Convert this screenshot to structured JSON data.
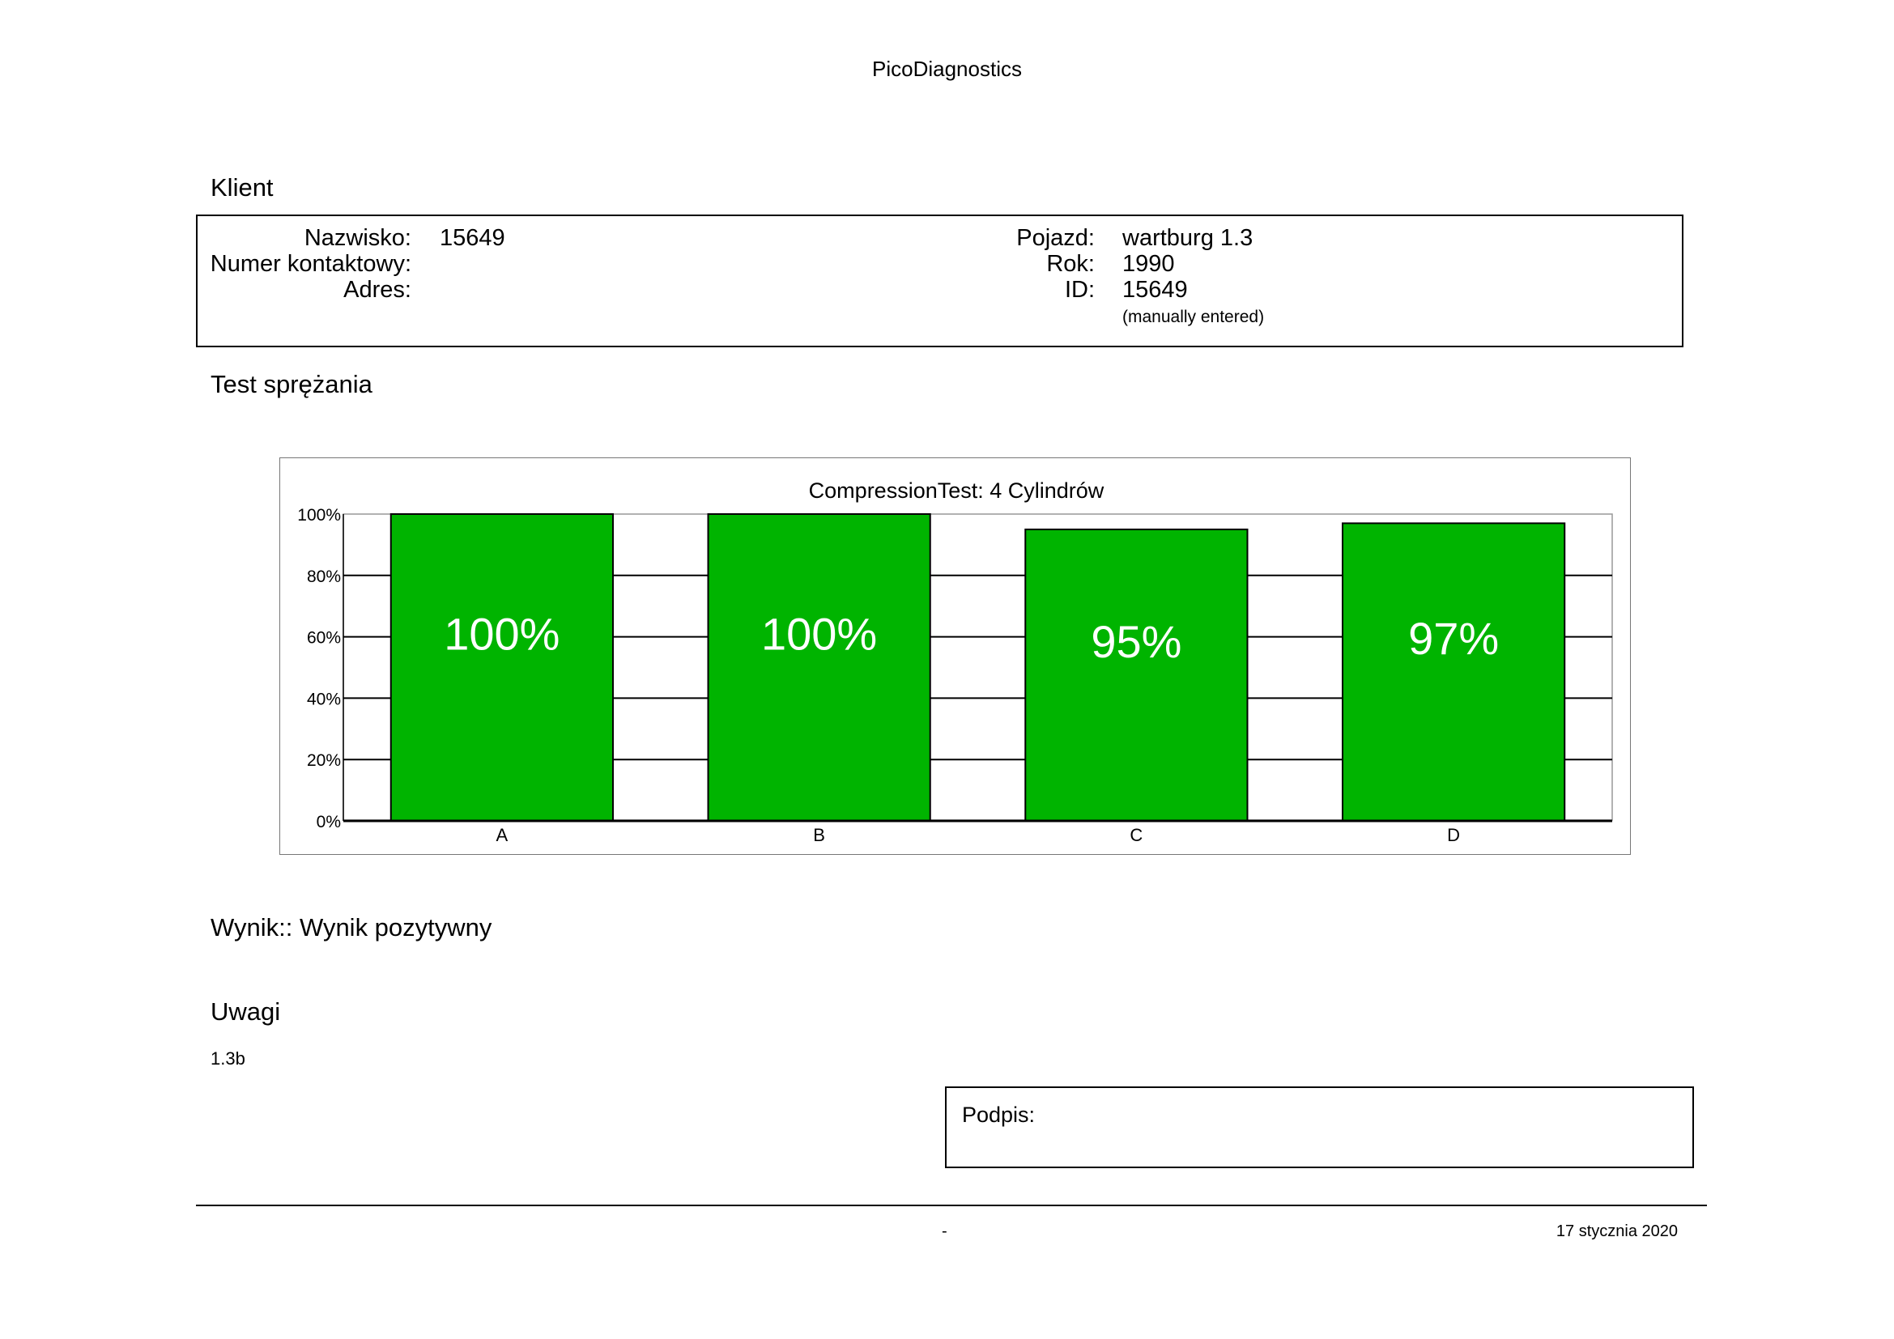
{
  "header": {
    "title": "PicoDiagnostics"
  },
  "client": {
    "section_title": "Klient",
    "name_label": "Nazwisko:",
    "name_value": "15649",
    "phone_label": "Numer kontaktowy:",
    "phone_value": "",
    "address_label": "Adres:",
    "address_value": "",
    "vehicle_label": "Pojazd:",
    "vehicle_value": "wartburg 1.3",
    "year_label": "Rok:",
    "year_value": "1990",
    "id_label": "ID:",
    "id_value": "15649",
    "id_note": "(manually entered)"
  },
  "test": {
    "section_title": "Test sprężania"
  },
  "chart_data": {
    "type": "bar",
    "title": "CompressionTest: 4 Cylindrów",
    "categories": [
      "A",
      "B",
      "C",
      "D"
    ],
    "values": [
      100,
      100,
      95,
      97
    ],
    "value_labels": [
      "100%",
      "100%",
      "95%",
      "97%"
    ],
    "ylim": [
      0,
      100
    ],
    "yticks": [
      0,
      20,
      40,
      60,
      80,
      100
    ],
    "ytick_labels": [
      "0%",
      "20%",
      "40%",
      "60%",
      "80%",
      "100%"
    ],
    "xlabel": "",
    "ylabel": "",
    "grid": true,
    "bar_color": "#00b400"
  },
  "result": {
    "text": "Wynik:: Wynik pozytywny"
  },
  "notes": {
    "section_title": "Uwagi",
    "text": "1.3b"
  },
  "signature": {
    "label": "Podpis:"
  },
  "footer": {
    "center": "-",
    "date": "17 stycznia 2020"
  }
}
